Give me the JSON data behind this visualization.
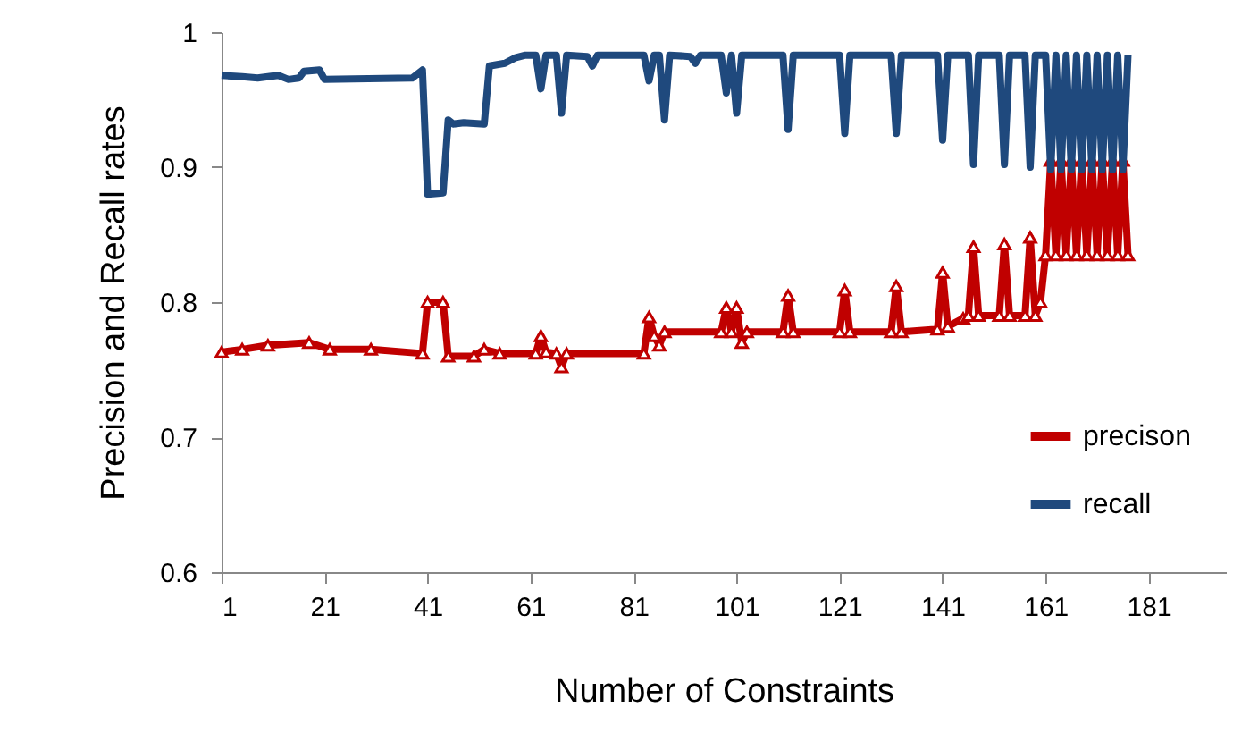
{
  "chart_data": {
    "type": "line",
    "xlabel": "Number of Constraints",
    "ylabel": "Precision and Recall rates",
    "xlim": [
      1,
      196
    ],
    "xticks": [
      1,
      21,
      41,
      61,
      81,
      101,
      121,
      141,
      161,
      181
    ],
    "ylim": [
      0.6,
      1
    ],
    "yticks": [
      0.6,
      0.7,
      0.8,
      0.9,
      1
    ],
    "grid": false,
    "legend": "right",
    "line_style": "solid",
    "series": [
      {
        "name": "precison",
        "color": "#c00000",
        "marker": "triangle",
        "x": [
          1,
          5,
          10,
          18,
          22,
          30,
          40,
          41,
          44,
          45,
          50,
          52,
          55,
          62,
          63,
          64,
          66,
          67,
          68,
          83,
          84,
          85,
          86,
          87,
          98,
          99,
          100,
          101,
          102,
          103,
          110,
          111,
          112,
          121,
          122,
          123,
          131,
          132,
          133,
          140,
          141,
          142,
          145,
          146,
          147,
          148,
          152,
          153,
          154,
          157,
          158,
          159,
          160,
          161,
          162,
          163,
          164,
          165,
          166,
          167,
          168,
          169,
          170,
          171,
          172,
          173,
          174,
          175,
          176,
          177
        ],
        "values": [
          0.763,
          0.765,
          0.768,
          0.77,
          0.765,
          0.765,
          0.762,
          0.8,
          0.8,
          0.76,
          0.76,
          0.765,
          0.762,
          0.762,
          0.775,
          0.763,
          0.762,
          0.752,
          0.762,
          0.762,
          0.789,
          0.775,
          0.768,
          0.778,
          0.778,
          0.796,
          0.778,
          0.796,
          0.77,
          0.778,
          0.778,
          0.805,
          0.778,
          0.778,
          0.809,
          0.778,
          0.778,
          0.812,
          0.778,
          0.78,
          0.822,
          0.782,
          0.788,
          0.79,
          0.841,
          0.79,
          0.79,
          0.843,
          0.79,
          0.79,
          0.848,
          0.79,
          0.8,
          0.835,
          0.905,
          0.835,
          0.905,
          0.835,
          0.905,
          0.835,
          0.905,
          0.835,
          0.905,
          0.835,
          0.905,
          0.835,
          0.905,
          0.835,
          0.905,
          0.835
        ]
      },
      {
        "name": "recall",
        "color": "#1f497d",
        "marker": "none",
        "x": [
          1,
          5,
          8,
          12,
          14,
          16,
          17,
          20,
          21,
          38,
          40,
          41,
          44,
          45,
          46,
          48,
          52,
          53,
          56,
          58,
          60,
          62,
          63,
          64,
          66,
          67,
          68,
          72,
          73,
          74,
          83,
          84,
          85,
          86,
          87,
          88,
          92,
          93,
          94,
          98,
          99,
          100,
          101,
          102,
          110,
          111,
          112,
          121,
          122,
          123,
          131,
          132,
          133,
          140,
          141,
          142,
          146,
          147,
          148,
          152,
          153,
          154,
          157,
          158,
          159,
          161,
          162,
          163,
          164,
          165,
          166,
          167,
          168,
          169,
          170,
          171,
          172,
          173,
          174,
          175,
          176,
          177
        ],
        "values": [
          0.968,
          0.967,
          0.966,
          0.968,
          0.965,
          0.966,
          0.971,
          0.972,
          0.965,
          0.966,
          0.972,
          0.88,
          0.881,
          0.935,
          0.932,
          0.933,
          0.932,
          0.975,
          0.977,
          0.981,
          0.983,
          0.983,
          0.958,
          0.983,
          0.983,
          0.94,
          0.983,
          0.982,
          0.975,
          0.983,
          0.983,
          0.964,
          0.983,
          0.983,
          0.935,
          0.983,
          0.982,
          0.977,
          0.983,
          0.983,
          0.955,
          0.983,
          0.94,
          0.983,
          0.983,
          0.928,
          0.983,
          0.983,
          0.925,
          0.983,
          0.983,
          0.925,
          0.983,
          0.983,
          0.92,
          0.983,
          0.983,
          0.902,
          0.983,
          0.983,
          0.902,
          0.983,
          0.983,
          0.9,
          0.983,
          0.983,
          0.898,
          0.983,
          0.898,
          0.983,
          0.898,
          0.983,
          0.898,
          0.983,
          0.898,
          0.983,
          0.898,
          0.983,
          0.898,
          0.983,
          0.898,
          0.983
        ]
      }
    ]
  }
}
